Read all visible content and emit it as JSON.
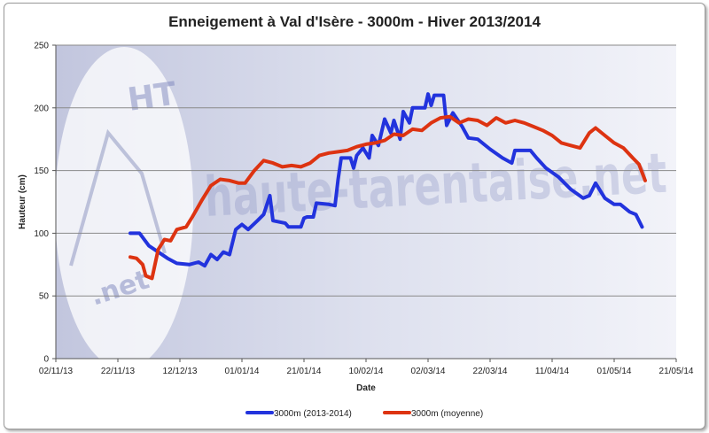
{
  "chart_data": {
    "type": "line",
    "title": "Enneigement à Val d'Isère - 3000m - Hiver 2013/2014",
    "xlabel": "Date",
    "ylabel": "Hauteur (cm)",
    "xlim": [
      "2013-11-02",
      "2014-05-21"
    ],
    "ylim": [
      0,
      250
    ],
    "x_ticks": [
      "02/11/13",
      "22/11/13",
      "12/12/13",
      "01/01/14",
      "21/01/14",
      "10/02/14",
      "02/03/14",
      "22/03/14",
      "11/04/14",
      "01/05/14",
      "21/05/14"
    ],
    "y_ticks": [
      "0",
      "50",
      "100",
      "150",
      "200",
      "250"
    ],
    "grid": "horizontal",
    "legend_position": "bottom",
    "watermark": "haute-tarentaise.net",
    "series": [
      {
        "name": "3000m (2013-2014)",
        "color": "#2233dd",
        "points": [
          [
            "2013-11-26",
            100
          ],
          [
            "2013-11-29",
            100
          ],
          [
            "2013-12-02",
            90
          ],
          [
            "2013-12-05",
            85
          ],
          [
            "2013-12-08",
            80
          ],
          [
            "2013-12-11",
            76
          ],
          [
            "2013-12-15",
            75
          ],
          [
            "2013-12-18",
            77
          ],
          [
            "2013-12-20",
            74
          ],
          [
            "2013-12-22",
            83
          ],
          [
            "2013-12-24",
            79
          ],
          [
            "2013-12-26",
            85
          ],
          [
            "2013-12-28",
            83
          ],
          [
            "2013-12-30",
            103
          ],
          [
            "2014-01-01",
            107
          ],
          [
            "2014-01-03",
            103
          ],
          [
            "2014-01-06",
            110
          ],
          [
            "2014-01-08",
            115
          ],
          [
            "2014-01-10",
            130
          ],
          [
            "2014-01-11",
            110
          ],
          [
            "2014-01-15",
            108
          ],
          [
            "2014-01-16",
            105
          ],
          [
            "2014-01-20",
            105
          ],
          [
            "2014-01-21",
            112
          ],
          [
            "2014-01-22",
            113
          ],
          [
            "2014-01-24",
            113
          ],
          [
            "2014-01-25",
            124
          ],
          [
            "2014-01-29",
            123
          ],
          [
            "2014-01-31",
            122
          ],
          [
            "2014-02-01",
            143
          ],
          [
            "2014-02-02",
            160
          ],
          [
            "2014-02-05",
            160
          ],
          [
            "2014-02-06",
            152
          ],
          [
            "2014-02-07",
            162
          ],
          [
            "2014-02-09",
            168
          ],
          [
            "2014-02-11",
            160
          ],
          [
            "2014-02-12",
            178
          ],
          [
            "2014-02-14",
            170
          ],
          [
            "2014-02-16",
            191
          ],
          [
            "2014-02-18",
            180
          ],
          [
            "2014-02-19",
            190
          ],
          [
            "2014-02-21",
            175
          ],
          [
            "2014-02-22",
            197
          ],
          [
            "2014-02-24",
            188
          ],
          [
            "2014-02-25",
            200
          ],
          [
            "2014-03-01",
            200
          ],
          [
            "2014-03-02",
            211
          ],
          [
            "2014-03-03",
            202
          ],
          [
            "2014-03-04",
            210
          ],
          [
            "2014-03-07",
            210
          ],
          [
            "2014-03-08",
            186
          ],
          [
            "2014-03-10",
            196
          ],
          [
            "2014-03-13",
            185
          ],
          [
            "2014-03-15",
            176
          ],
          [
            "2014-03-18",
            175
          ],
          [
            "2014-03-22",
            167
          ],
          [
            "2014-03-26",
            160
          ],
          [
            "2014-03-29",
            156
          ],
          [
            "2014-03-30",
            166
          ],
          [
            "2014-04-04",
            166
          ],
          [
            "2014-04-06",
            160
          ],
          [
            "2014-04-09",
            152
          ],
          [
            "2014-04-13",
            145
          ],
          [
            "2014-04-17",
            135
          ],
          [
            "2014-04-21",
            128
          ],
          [
            "2014-04-23",
            130
          ],
          [
            "2014-04-25",
            140
          ],
          [
            "2014-04-28",
            128
          ],
          [
            "2014-05-01",
            123
          ],
          [
            "2014-05-03",
            123
          ],
          [
            "2014-05-06",
            117
          ],
          [
            "2014-05-08",
            115
          ],
          [
            "2014-05-10",
            105
          ]
        ]
      },
      {
        "name": "3000m (moyenne)",
        "color": "#dd3311",
        "points": [
          [
            "2013-11-26",
            81
          ],
          [
            "2013-11-28",
            80
          ],
          [
            "2013-11-30",
            75
          ],
          [
            "2013-12-01",
            66
          ],
          [
            "2013-12-03",
            64
          ],
          [
            "2013-12-05",
            87
          ],
          [
            "2013-12-07",
            95
          ],
          [
            "2013-12-09",
            94
          ],
          [
            "2013-12-11",
            103
          ],
          [
            "2013-12-14",
            105
          ],
          [
            "2013-12-16",
            113
          ],
          [
            "2013-12-19",
            126
          ],
          [
            "2013-12-22",
            138
          ],
          [
            "2013-12-25",
            143
          ],
          [
            "2013-12-28",
            142
          ],
          [
            "2013-12-31",
            140
          ],
          [
            "2014-01-02",
            140
          ],
          [
            "2014-01-05",
            150
          ],
          [
            "2014-01-08",
            158
          ],
          [
            "2014-01-11",
            156
          ],
          [
            "2014-01-14",
            153
          ],
          [
            "2014-01-17",
            154
          ],
          [
            "2014-01-20",
            153
          ],
          [
            "2014-01-23",
            156
          ],
          [
            "2014-01-26",
            162
          ],
          [
            "2014-01-29",
            164
          ],
          [
            "2014-02-01",
            165
          ],
          [
            "2014-02-04",
            166
          ],
          [
            "2014-02-07",
            169
          ],
          [
            "2014-02-10",
            171
          ],
          [
            "2014-02-13",
            172
          ],
          [
            "2014-02-16",
            174
          ],
          [
            "2014-02-19",
            179
          ],
          [
            "2014-02-22",
            178
          ],
          [
            "2014-02-25",
            183
          ],
          [
            "2014-02-28",
            182
          ],
          [
            "2014-03-03",
            188
          ],
          [
            "2014-03-06",
            192
          ],
          [
            "2014-03-09",
            193
          ],
          [
            "2014-03-12",
            188
          ],
          [
            "2014-03-15",
            191
          ],
          [
            "2014-03-18",
            190
          ],
          [
            "2014-03-21",
            186
          ],
          [
            "2014-03-24",
            192
          ],
          [
            "2014-03-27",
            188
          ],
          [
            "2014-03-30",
            190
          ],
          [
            "2014-04-02",
            188
          ],
          [
            "2014-04-05",
            185
          ],
          [
            "2014-04-08",
            182
          ],
          [
            "2014-04-11",
            178
          ],
          [
            "2014-04-14",
            172
          ],
          [
            "2014-04-17",
            170
          ],
          [
            "2014-04-20",
            168
          ],
          [
            "2014-04-23",
            180
          ],
          [
            "2014-04-25",
            184
          ],
          [
            "2014-04-28",
            178
          ],
          [
            "2014-05-01",
            172
          ],
          [
            "2014-05-04",
            168
          ],
          [
            "2014-05-07",
            160
          ],
          [
            "2014-05-09",
            155
          ],
          [
            "2014-05-11",
            142
          ]
        ]
      }
    ]
  }
}
